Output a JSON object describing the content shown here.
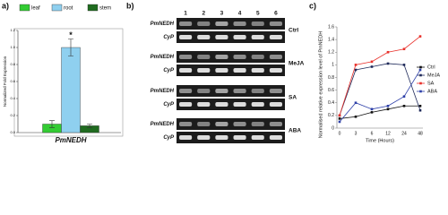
{
  "chart_data": [
    {
      "type": "bar",
      "label": "a)",
      "ylabel": "Normalized Fold Expression",
      "categories": [
        "PmNEDH"
      ],
      "series": [
        {
          "name": "leaf",
          "color": "#33cc33",
          "values": [
            0.1
          ],
          "errors": [
            0.04
          ]
        },
        {
          "name": "root",
          "color": "#8fd0ef",
          "values": [
            1.0
          ],
          "errors": [
            0.1
          ]
        },
        {
          "name": "stem",
          "color": "#1f6b1f",
          "values": [
            0.08
          ],
          "errors": [
            0.02
          ]
        }
      ],
      "annotation": "*",
      "ylim": [
        0,
        1.2
      ],
      "yticks": [
        {
          "value": 0,
          "label": "0.0"
        },
        0.2,
        0.4,
        0.6,
        0.8,
        {
          "value": 1,
          "label": "1.0"
        },
        1.2
      ],
      "legend": "top"
    },
    {
      "type": "line",
      "label": "c)",
      "ylabel": "Normalised relative expression level of PmNEDH",
      "xlabel": "Time (Hours)",
      "categories": [
        "0",
        "3",
        "6",
        "12",
        "24",
        "48"
      ],
      "series": [
        {
          "name": "Ctrl",
          "color": "#111111",
          "values": [
            0.15,
            0.18,
            0.25,
            0.3,
            0.35,
            0.35
          ]
        },
        {
          "name": "MeJA",
          "color": "#1f2a5a",
          "values": [
            0.2,
            0.92,
            0.97,
            1.02,
            1.0,
            0.28
          ]
        },
        {
          "name": "SA",
          "color": "#e8302a",
          "values": [
            0.2,
            1.0,
            1.05,
            1.2,
            1.25,
            1.45
          ]
        },
        {
          "name": "ABA",
          "color": "#2d3fa8",
          "values": [
            0.1,
            0.4,
            0.3,
            0.35,
            0.5,
            0.92
          ]
        }
      ],
      "ylim": [
        0,
        1.6
      ],
      "yticks": [
        0,
        0.2,
        0.4,
        0.6,
        0.8,
        1,
        1.2,
        1.4,
        1.6
      ],
      "legend": "right"
    }
  ],
  "gel": {
    "label": "b)",
    "lanes": [
      "1",
      "2",
      "3",
      "4",
      "5",
      "6"
    ],
    "panels": [
      {
        "treatment": "Ctrl",
        "rows": [
          "PmNEDH",
          "CyP"
        ]
      },
      {
        "treatment": "MeJA",
        "rows": [
          "PmNEDH",
          "CyP"
        ]
      },
      {
        "treatment": "SA",
        "rows": [
          "PmNEDH",
          "CyP"
        ]
      },
      {
        "treatment": "ABA",
        "rows": [
          "PmNEDH",
          "CyP"
        ]
      }
    ]
  }
}
